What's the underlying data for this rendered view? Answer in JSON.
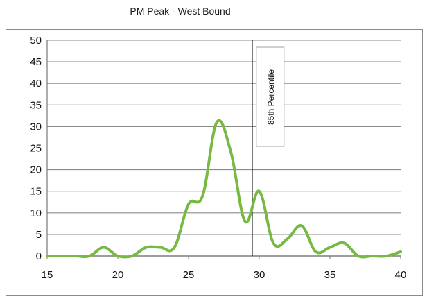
{
  "chart_data": {
    "type": "line",
    "title": "PM Peak - West Bound",
    "xlabel": "",
    "ylabel": "",
    "xlim": [
      15,
      40
    ],
    "ylim": [
      0,
      50
    ],
    "x_ticks": [
      15,
      20,
      25,
      30,
      35,
      40
    ],
    "y_ticks": [
      0,
      5,
      10,
      15,
      20,
      25,
      30,
      35,
      40,
      45,
      50
    ],
    "grid": "horizontal",
    "legend": "none",
    "series": [
      {
        "color": "#78b943",
        "x": [
          15,
          16,
          17,
          18,
          19,
          20,
          21,
          22,
          23,
          24,
          25,
          26,
          27,
          28,
          29,
          30,
          31,
          32,
          33,
          34,
          35,
          36,
          37,
          38,
          39,
          40
        ],
        "values": [
          0,
          0,
          0,
          0,
          2,
          0,
          0,
          2,
          2,
          2,
          12,
          14,
          31,
          24,
          8,
          15,
          3,
          4,
          7,
          1,
          2,
          3,
          0,
          0,
          0,
          1
        ]
      }
    ],
    "annotations": [
      {
        "type": "vertical-line",
        "x": 29.5,
        "label": "85th Percentile"
      }
    ]
  }
}
